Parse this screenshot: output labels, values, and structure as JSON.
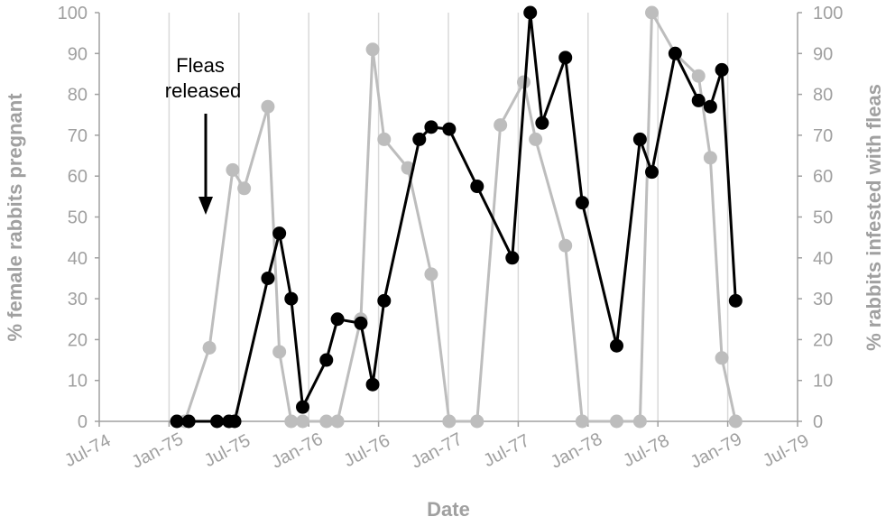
{
  "chart_data": {
    "type": "line",
    "xlabel": "Date",
    "ylabel_left": "% female rabbits pregnant",
    "ylabel_right": "% rabbits infested with fleas",
    "x_ticks": [
      "Jul-74",
      "Jan-75",
      "Jul-75",
      "Jan-76",
      "Jul-76",
      "Jan-77",
      "Jul-77",
      "Jan-78",
      "Jul-78",
      "Jan-79",
      "Jul-79"
    ],
    "xlim": [
      "1974-07",
      "1979-07"
    ],
    "ylim_left": [
      0,
      100
    ],
    "ylim_right": [
      0,
      100
    ],
    "y_ticks": [
      0,
      10,
      20,
      30,
      40,
      50,
      60,
      70,
      80,
      90,
      100
    ],
    "grid": "vertical",
    "annotation": {
      "lines": [
        "Fleas",
        "released"
      ],
      "date": "1975-05",
      "arrow": "down"
    },
    "series": [
      {
        "axis": "left",
        "color": "#000000",
        "x": [
          "1975-01-20",
          "1975-02-20",
          "1975-05-05",
          "1975-06-05",
          "1975-06-20",
          "1975-09-15",
          "1975-10-15",
          "1975-11-15",
          "1975-12-15",
          "1976-02-15",
          "1976-03-15",
          "1976-05-15",
          "1976-06-15",
          "1976-07-15",
          "1976-10-15",
          "1976-11-15",
          "1977-01-01",
          "1977-03-15",
          "1977-06-15",
          "1977-08-01",
          "1977-09-01",
          "1977-11-01",
          "1977-12-15",
          "1978-03-15",
          "1978-05-15",
          "1978-06-15",
          "1978-08-15",
          "1978-10-15",
          "1978-11-15",
          "1978-12-15",
          "1979-01-20"
        ],
        "values": [
          0,
          0,
          0,
          0,
          0,
          35,
          46,
          30,
          3.5,
          15,
          25,
          24,
          9,
          29.5,
          69,
          72,
          71.5,
          57.5,
          40,
          100,
          73,
          89,
          53.5,
          18.5,
          69,
          61,
          90,
          78.5,
          77,
          86,
          29.5
        ]
      },
      {
        "axis": "right",
        "color": "#bdbdbd",
        "x": [
          "1975-01-20",
          "1975-02-10",
          "1975-04-15",
          "1975-06-15",
          "1975-07-15",
          "1975-09-15",
          "1975-10-15",
          "1975-11-15",
          "1975-12-15",
          "1976-02-15",
          "1976-03-15",
          "1976-05-15",
          "1976-06-15",
          "1976-07-15",
          "1976-09-15",
          "1976-11-15",
          "1977-01-01",
          "1977-03-15",
          "1977-05-15",
          "1977-07-15",
          "1977-08-15",
          "1977-11-01",
          "1977-12-15",
          "1978-03-15",
          "1978-05-15",
          "1978-06-15",
          "1978-08-15",
          "1978-10-15",
          "1978-11-15",
          "1978-12-15",
          "1979-01-20"
        ],
        "values": [
          0,
          0,
          18,
          61.5,
          57,
          77,
          17,
          0,
          0,
          0,
          0,
          25,
          91,
          69,
          62,
          36,
          0,
          0,
          72.5,
          83,
          69,
          43,
          0,
          0,
          0,
          100,
          90,
          84.5,
          64.5,
          15.5,
          0
        ]
      }
    ]
  }
}
